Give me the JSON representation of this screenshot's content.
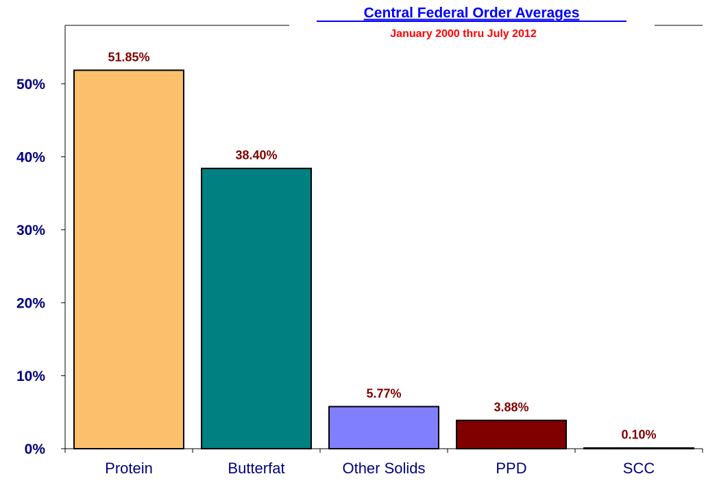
{
  "chart_data": {
    "type": "bar",
    "title": "Central Federal Order Averages",
    "subtitle": "January 2000 thru July 2012",
    "categories": [
      "Protein",
      "Butterfat",
      "Other Solids",
      "PPD",
      "SCC"
    ],
    "values": [
      51.85,
      38.4,
      5.77,
      3.88,
      0.1
    ],
    "value_labels": [
      "51.85%",
      "38.40%",
      "5.77%",
      "3.88%",
      "0.10%"
    ],
    "colors": [
      "#fcc06c",
      "#008080",
      "#8080ff",
      "#800000",
      "#000000"
    ],
    "ylim": [
      0,
      58
    ],
    "yticks": [
      {
        "value": 0,
        "label": "0%"
      },
      {
        "value": 10,
        "label": "10%"
      },
      {
        "value": 20,
        "label": "20%"
      },
      {
        "value": 30,
        "label": "30%"
      },
      {
        "value": 40,
        "label": "40%"
      },
      {
        "value": 50,
        "label": "50%"
      }
    ],
    "grid": false
  }
}
